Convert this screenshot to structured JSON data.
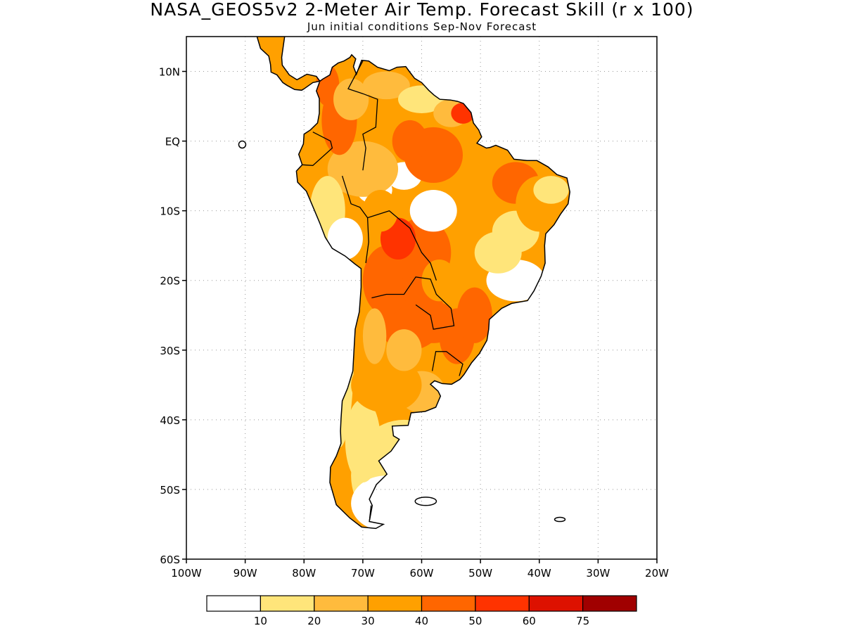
{
  "title": "NASA_GEOS5v2 2-Meter Air Temp. Forecast Skill (r x 100)",
  "subtitle": "Jun initial conditions  Sep-Nov Forecast",
  "map": {
    "lon_range": [
      -100,
      -20
    ],
    "lat_range": [
      -60,
      15
    ],
    "grid": true,
    "lat_ticks": [
      {
        "value": 10,
        "label": "10N"
      },
      {
        "value": 0,
        "label": "EQ"
      },
      {
        "value": -10,
        "label": "10S"
      },
      {
        "value": -20,
        "label": "20S"
      },
      {
        "value": -30,
        "label": "30S"
      },
      {
        "value": -40,
        "label": "40S"
      },
      {
        "value": -50,
        "label": "50S"
      },
      {
        "value": -60,
        "label": "60S"
      }
    ],
    "lon_ticks": [
      {
        "value": -100,
        "label": "100W"
      },
      {
        "value": -90,
        "label": "90W"
      },
      {
        "value": -80,
        "label": "80W"
      },
      {
        "value": -70,
        "label": "70W"
      },
      {
        "value": -60,
        "label": "60W"
      },
      {
        "value": -50,
        "label": "50W"
      },
      {
        "value": -40,
        "label": "40W"
      },
      {
        "value": -30,
        "label": "30W"
      },
      {
        "value": -20,
        "label": "20W"
      }
    ]
  },
  "colorbar": {
    "colors": [
      "#ffffff",
      "#ffe57a",
      "#ffbb3d",
      "#ffa000",
      "#ff6600",
      "#ff3300",
      "#dd1100",
      "#a00000"
    ],
    "labels": [
      "10",
      "20",
      "30",
      "40",
      "50",
      "60",
      "75"
    ]
  }
}
